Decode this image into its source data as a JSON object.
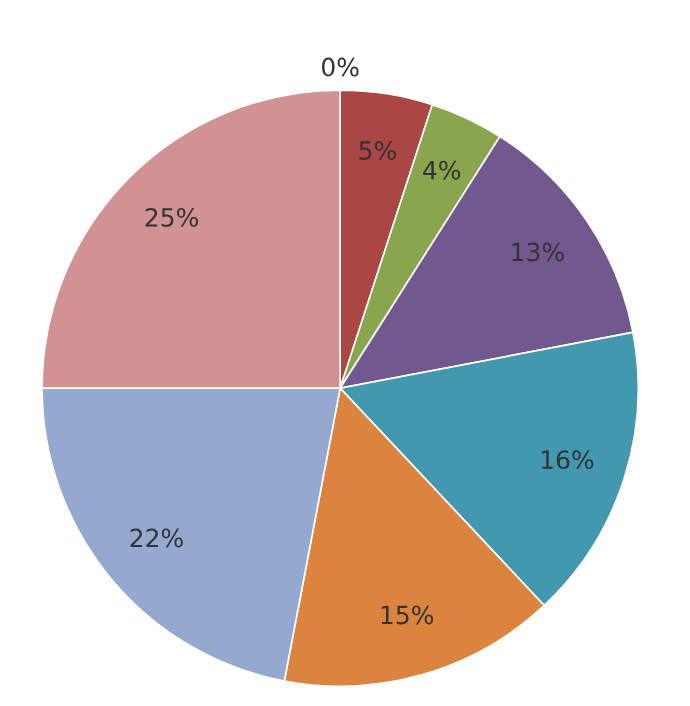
{
  "chart_data": {
    "type": "pie",
    "categories": [
      null,
      null,
      null,
      null,
      null,
      null,
      null,
      null
    ],
    "values": [
      0,
      5,
      4,
      13,
      16,
      15,
      22,
      25
    ],
    "colors": [
      "#4f81bd",
      "#aa4643",
      "#89a54e",
      "#71588f",
      "#4198af",
      "#db843d",
      "#93a9cf",
      "#d19392"
    ],
    "value_labels": [
      "0%",
      "5%",
      "4%",
      "13%",
      "16%",
      "15%",
      "22%",
      "25%"
    ]
  }
}
